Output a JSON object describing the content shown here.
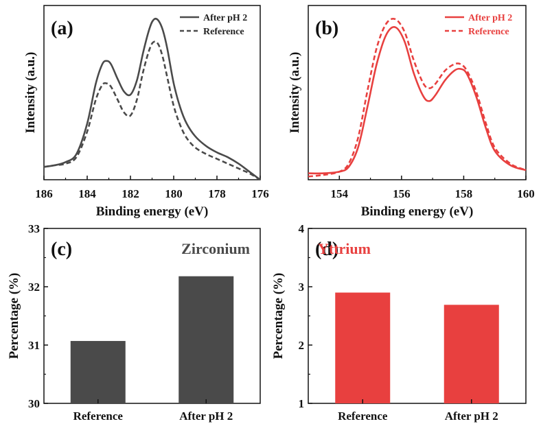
{
  "chart_data": [
    {
      "type": "line",
      "panel": "(a)",
      "xlabel": "Binding energy (eV)",
      "ylabel": "Intensity (a.u.)",
      "xlim": [
        186,
        176
      ],
      "ylim": [
        0,
        1
      ],
      "xticks": [
        186,
        184,
        182,
        180,
        178,
        176
      ],
      "color": "#4a4a4a",
      "legend_position": "top-right",
      "series": [
        {
          "name": "After pH 2",
          "style": "solid",
          "x": [
            186,
            185.5,
            185,
            184.5,
            184,
            183.6,
            183.3,
            183.1,
            182.9,
            182.6,
            182.3,
            182,
            181.7,
            181.4,
            181.1,
            180.9,
            180.7,
            180.5,
            180.3,
            180,
            179.7,
            179.4,
            179,
            178.5,
            178,
            177.5,
            177,
            176.5,
            176
          ],
          "y": [
            0.08,
            0.09,
            0.11,
            0.16,
            0.35,
            0.6,
            0.72,
            0.74,
            0.72,
            0.63,
            0.55,
            0.53,
            0.62,
            0.8,
            0.95,
            1.0,
            0.99,
            0.93,
            0.82,
            0.6,
            0.45,
            0.35,
            0.27,
            0.21,
            0.17,
            0.14,
            0.1,
            0.05,
            0.0
          ]
        },
        {
          "name": "Reference",
          "style": "dashed",
          "x": [
            186,
            185.5,
            185,
            184.5,
            184,
            183.6,
            183.3,
            183.1,
            182.9,
            182.6,
            182.3,
            182,
            181.7,
            181.4,
            181.1,
            180.9,
            180.7,
            180.5,
            180.3,
            180,
            179.7,
            179.4,
            179,
            178.5,
            178,
            177.5,
            177,
            176.5,
            176
          ],
          "y": [
            0.08,
            0.09,
            0.1,
            0.14,
            0.3,
            0.5,
            0.59,
            0.6,
            0.58,
            0.5,
            0.42,
            0.4,
            0.5,
            0.68,
            0.82,
            0.86,
            0.84,
            0.76,
            0.64,
            0.46,
            0.34,
            0.26,
            0.2,
            0.16,
            0.13,
            0.1,
            0.07,
            0.04,
            0.0
          ]
        }
      ]
    },
    {
      "type": "line",
      "panel": "(b)",
      "xlabel": "Binding energy (eV)",
      "ylabel": "Intensity (a.u.)",
      "xlim": [
        153,
        160
      ],
      "ylim": [
        0,
        1
      ],
      "xticks": [
        154,
        156,
        158,
        160
      ],
      "color": "#e8403f",
      "legend_position": "top-right",
      "series": [
        {
          "name": "After pH 2",
          "style": "solid",
          "x": [
            153,
            153.5,
            154,
            154.3,
            154.6,
            154.9,
            155.2,
            155.5,
            155.8,
            156.1,
            156.4,
            156.7,
            156.9,
            157.1,
            157.4,
            157.7,
            157.9,
            158.1,
            158.4,
            158.7,
            159,
            159.5,
            160
          ],
          "y": [
            0.04,
            0.04,
            0.05,
            0.08,
            0.2,
            0.45,
            0.72,
            0.9,
            0.95,
            0.86,
            0.66,
            0.52,
            0.49,
            0.53,
            0.62,
            0.68,
            0.69,
            0.66,
            0.52,
            0.33,
            0.18,
            0.09,
            0.06
          ]
        },
        {
          "name": "Reference",
          "style": "dashed",
          "x": [
            153,
            153.5,
            154,
            154.3,
            154.6,
            154.9,
            155.2,
            155.5,
            155.8,
            156.1,
            156.4,
            156.7,
            156.9,
            157.1,
            157.4,
            157.7,
            157.9,
            158.1,
            158.4,
            158.7,
            159,
            159.5,
            160
          ],
          "y": [
            0.02,
            0.03,
            0.05,
            0.1,
            0.26,
            0.55,
            0.82,
            0.97,
            1.0,
            0.92,
            0.74,
            0.6,
            0.57,
            0.6,
            0.68,
            0.72,
            0.72,
            0.68,
            0.55,
            0.36,
            0.2,
            0.1,
            0.06
          ]
        }
      ]
    },
    {
      "type": "bar",
      "panel": "(c)",
      "annotation": "Zirconium",
      "ylabel": "Percentage (%)",
      "ylim": [
        30,
        33
      ],
      "yticks": [
        30,
        31,
        32,
        33
      ],
      "categories": [
        "Reference",
        "After pH 2"
      ],
      "values": [
        31.07,
        32.18
      ],
      "color": "#4a4a4a"
    },
    {
      "type": "bar",
      "panel": "(d)",
      "annotation": "Yttrium",
      "ylabel": "Percentage (%)",
      "ylim": [
        1,
        4
      ],
      "yticks": [
        1,
        2,
        3,
        4
      ],
      "categories": [
        "Reference",
        "After pH 2"
      ],
      "values": [
        2.9,
        2.69
      ],
      "color": "#e8403f"
    }
  ]
}
